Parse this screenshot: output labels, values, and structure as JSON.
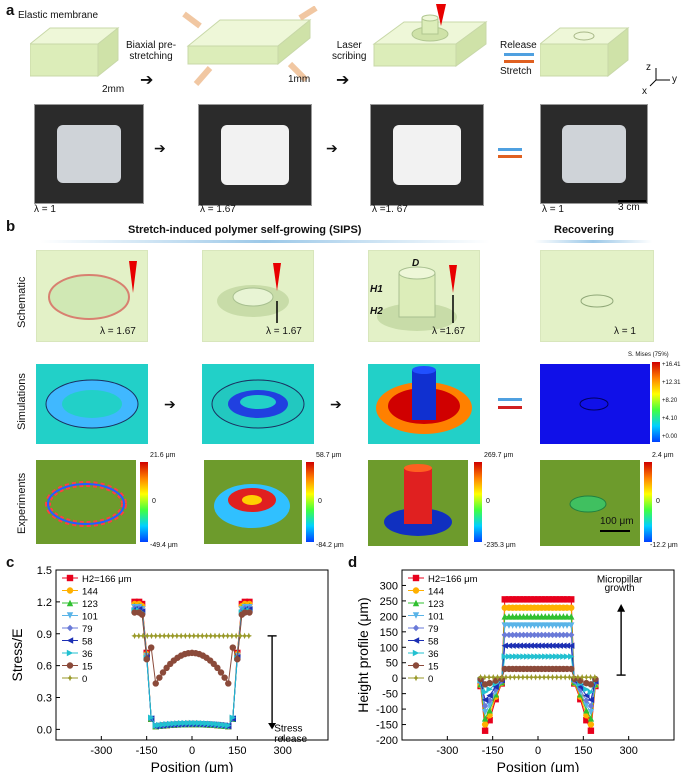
{
  "panel_a": {
    "letter": "a",
    "elastic_membrane": "Elastic membrane",
    "thickness_initial": "2mm",
    "step1": "Biaxial pre-\nstretching",
    "thickness_stretched": "1mm",
    "step2": "Laser\nscribing",
    "release": "Release",
    "stretch": "Stretch",
    "axes": {
      "z": "z",
      "y": "y",
      "x": "x"
    },
    "lambdas": [
      "λ = 1",
      "λ = 1.67",
      "λ =1. 67",
      "λ = 1"
    ],
    "scalebar": "3 cm"
  },
  "panel_b": {
    "letter": "b",
    "title_left": "Stretch-induced polymer self-growing (SIPS)",
    "title_right": "Recovering",
    "row_labels": [
      "Schematic",
      "Simulations",
      "Experiments"
    ],
    "schematic_lambdas": [
      "λ = 1.67",
      "λ = 1.67",
      "λ =1.67",
      "λ = 1"
    ],
    "dim_labels": {
      "D": "D",
      "H1": "H1",
      "H2": "H2"
    },
    "legend_title": "S. Mises (75%)",
    "legend_ticks": [
      "+16.41",
      "+12.31",
      "+8.20",
      "+4.10",
      "+0.00"
    ],
    "exp_colorbars": [
      {
        "top": "21.6 μm",
        "mid": "0",
        "bottom": "-49.4 μm"
      },
      {
        "top": "58.7 μm",
        "mid": "0",
        "bottom": "-84.2 μm"
      },
      {
        "top": "269.7 μm",
        "mid": "0",
        "bottom": "-235.3 μm"
      },
      {
        "top": "2.4 μm",
        "mid": "0",
        "bottom": "-12.2 μm"
      }
    ],
    "scalebar": "100 μm"
  },
  "colors": {
    "membrane": "#e3f1c7",
    "series": [
      "#e8001c",
      "#ffb000",
      "#30c030",
      "#5ab4e8",
      "#6a7ad8",
      "#1c2fb4",
      "#22c0d0",
      "#8b4a3a",
      "#9a9a2a"
    ]
  },
  "chart_data": [
    {
      "type": "scatter",
      "panel": "c",
      "xlabel": "Position (μm)",
      "ylabel": "Stress/E",
      "xlim": [
        -450,
        450
      ],
      "ylim": [
        -0.1,
        1.5
      ],
      "xticks": [
        -300,
        -150,
        0,
        150,
        300
      ],
      "yticks": [
        0.0,
        0.3,
        0.6,
        0.9,
        1.2,
        1.5
      ],
      "legend": [
        "H2=166 μm",
        "144",
        "123",
        "101",
        "79",
        "58",
        "36",
        "15",
        "0"
      ],
      "annotation": "Stress\nrelease",
      "series": [
        {
          "name": "H2=166 μm",
          "edge": 1.2,
          "center": 0.05
        },
        {
          "name": "144",
          "edge": 1.18,
          "center": 0.05
        },
        {
          "name": "123",
          "edge": 1.16,
          "center": 0.05
        },
        {
          "name": "101",
          "edge": 1.15,
          "center": 0.05
        },
        {
          "name": "79",
          "edge": 1.14,
          "center": 0.05
        },
        {
          "name": "58",
          "edge": 1.13,
          "center": 0.05
        },
        {
          "name": "36",
          "edge": 1.12,
          "center": 0.06
        },
        {
          "name": "15",
          "edge": 1.1,
          "center": 0.72
        },
        {
          "name": "0",
          "edge": 0.88,
          "center": 0.88
        }
      ]
    },
    {
      "type": "scatter",
      "panel": "d",
      "xlabel": "Position (μm)",
      "ylabel": "Height profile (μm)",
      "xlim": [
        -450,
        450
      ],
      "ylim": [
        -200,
        350
      ],
      "xticks": [
        -300,
        -150,
        0,
        150,
        300
      ],
      "yticks": [
        -200,
        -150,
        -100,
        -50,
        0,
        50,
        100,
        150,
        200,
        250,
        300
      ],
      "legend": [
        "H2=166 μm",
        "144",
        "123",
        "101",
        "79",
        "58",
        "36",
        "15",
        "0"
      ],
      "annotation": "Micropillar\ngrowth",
      "series": [
        {
          "name": "H2=166 μm",
          "top": 255,
          "bottom": -170
        },
        {
          "name": "144",
          "top": 228,
          "bottom": -150
        },
        {
          "name": "123",
          "top": 200,
          "bottom": -130
        },
        {
          "name": "101",
          "top": 170,
          "bottom": -110
        },
        {
          "name": "79",
          "top": 140,
          "bottom": -90
        },
        {
          "name": "58",
          "top": 105,
          "bottom": -70
        },
        {
          "name": "36",
          "top": 70,
          "bottom": -45
        },
        {
          "name": "15",
          "top": 30,
          "bottom": -20
        },
        {
          "name": "0",
          "top": 3,
          "bottom": 0
        }
      ]
    }
  ]
}
